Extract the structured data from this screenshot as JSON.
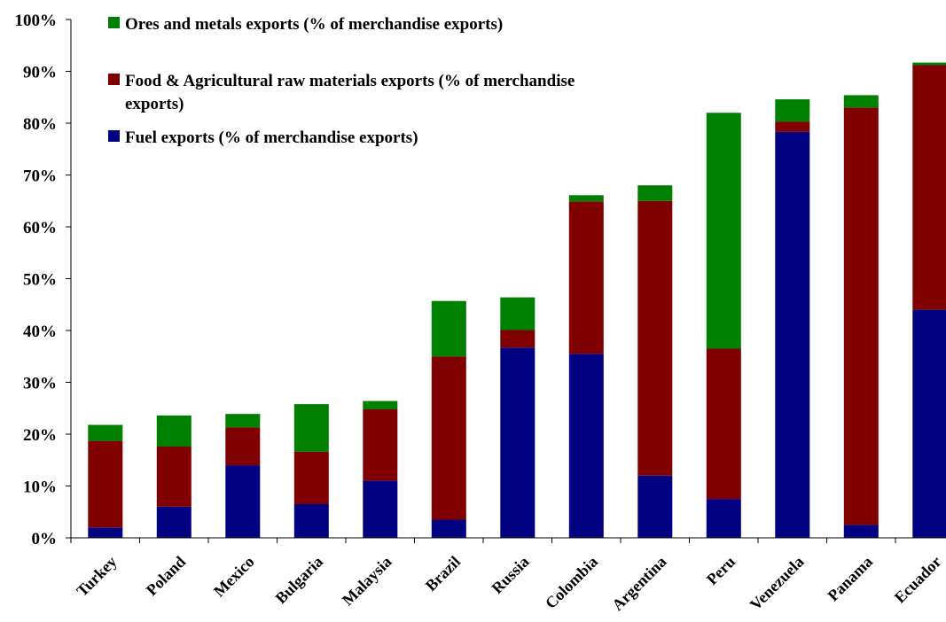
{
  "chart_data": {
    "type": "bar",
    "stacked": true,
    "categories": [
      "Turkey",
      "Poland",
      "Mexico",
      "Bulgaria",
      "Malaysia",
      "Brazil",
      "Russia",
      "Colombia",
      "Argentina",
      "Peru",
      "Venezuela",
      "Panama",
      "Ecuador"
    ],
    "series": [
      {
        "name": "Fuel exports (% of merchandise exports)",
        "color": "#000080",
        "values": [
          2.0,
          6.0,
          14.0,
          6.5,
          11.0,
          3.5,
          36.7,
          35.5,
          12.0,
          7.5,
          78.3,
          2.5,
          44.0
        ]
      },
      {
        "name": "Food & Agricultural raw materials exports (% of merchandise exports)",
        "color": "#800000",
        "values": [
          16.7,
          11.6,
          7.3,
          10.1,
          13.8,
          31.5,
          3.4,
          29.4,
          53.0,
          29.0,
          2.0,
          80.5,
          47.2
        ]
      },
      {
        "name": "Ores and metals exports (% of merchandise exports)",
        "color": "#008000",
        "values": [
          3.1,
          6.0,
          2.6,
          9.2,
          1.6,
          10.7,
          6.3,
          1.2,
          3.0,
          45.5,
          4.3,
          2.4,
          0.5
        ]
      }
    ],
    "ylim": [
      0,
      100
    ],
    "yticks": [
      0,
      10,
      20,
      30,
      40,
      50,
      60,
      70,
      80,
      90,
      100
    ],
    "ytick_labels": [
      "0%",
      "10%",
      "20%",
      "30%",
      "40%",
      "50%",
      "60%",
      "70%",
      "80%",
      "90%",
      "100%"
    ],
    "title": "",
    "xlabel": "",
    "ylabel": "",
    "grid": false,
    "legend": {
      "placement": "top-left",
      "order": [
        2,
        1,
        0
      ],
      "entries": [
        "Ores and metals exports (% of merchandise exports)",
        "Food & Agricultural raw materials exports (% of merchandise",
        "exports)",
        "Fuel exports (% of merchandise exports)"
      ]
    }
  }
}
